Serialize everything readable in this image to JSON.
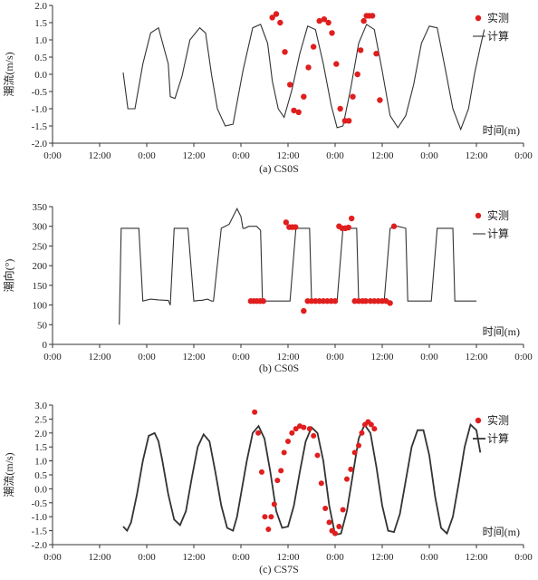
{
  "chart_data": [
    {
      "type": "line",
      "caption": "(a)  CS0S",
      "ylabel": "潮流(m/s)",
      "xlabel": "时间(m)",
      "ylim": [
        -2.0,
        2.0
      ],
      "yticks": [
        "2.0",
        "1.5",
        "1.0",
        "0.5",
        "0.0",
        "-0.5",
        "-1.0",
        "-1.5",
        "-2.0"
      ],
      "ytick_values": [
        2.0,
        1.5,
        1.0,
        0.5,
        0.0,
        -0.5,
        -1.0,
        -1.5,
        -2.0
      ],
      "xticks": [
        "0:00",
        "12:00",
        "0:00",
        "12:00",
        "0:00",
        "12:00",
        "0:00",
        "12:00",
        "0:00",
        "12:00",
        "0:00"
      ],
      "xlim_hours": [
        0,
        120
      ],
      "legend": {
        "measured": "实测",
        "computed": "计算",
        "position": "top-right"
      },
      "series": [
        {
          "name": "计算",
          "kind": "line",
          "x": [
            18.0,
            19.2,
            21.0,
            23.0,
            25.0,
            27.0,
            29.5,
            30.0,
            31.2,
            33.0,
            35.0,
            37.5,
            39.0,
            40.5,
            42.0,
            44.0,
            46.0,
            48.5,
            51.0,
            53.0,
            54.8,
            56.0,
            57.5,
            59.0,
            61.0,
            63.0,
            65.0,
            67.0,
            69.0,
            71.0,
            72.5,
            74.0,
            76.0,
            78.0,
            80.0,
            82.0,
            84.0,
            86.0,
            88.0,
            90.0,
            92.0,
            94.0,
            96.0,
            98.0,
            100.0,
            102.0,
            104.0,
            106.0,
            107.5,
            109.0,
            110.0
          ],
          "y": [
            0.05,
            -1.0,
            -1.0,
            0.3,
            1.2,
            1.35,
            0.3,
            -0.65,
            -0.7,
            -0.05,
            1.0,
            1.35,
            1.2,
            0.0,
            -1.0,
            -1.5,
            -1.45,
            0.1,
            1.35,
            1.45,
            0.9,
            -0.2,
            -1.0,
            -1.25,
            -0.45,
            0.6,
            1.4,
            1.3,
            0.3,
            -0.9,
            -1.55,
            -1.5,
            -0.4,
            0.9,
            1.45,
            1.3,
            0.1,
            -1.2,
            -1.55,
            -1.2,
            -0.3,
            0.9,
            1.4,
            1.35,
            0.2,
            -1.0,
            -1.6,
            -1.0,
            0.0,
            0.8,
            1.3
          ]
        },
        {
          "name": "实测",
          "kind": "scatter",
          "x": [
            56.0,
            57.0,
            58.0,
            59.2,
            60.5,
            61.5,
            62.7,
            64.0,
            65.2,
            66.5,
            68.0,
            69.2,
            70.3,
            71.2,
            72.3,
            73.3,
            74.5,
            75.5,
            76.5,
            77.7,
            78.5,
            79.3,
            80.0,
            80.7,
            81.5,
            82.5,
            83.4
          ],
          "y": [
            1.65,
            1.75,
            1.5,
            0.65,
            -0.3,
            -1.05,
            -1.1,
            -0.65,
            0.2,
            0.8,
            1.55,
            1.6,
            1.5,
            1.2,
            0.3,
            -1.0,
            -1.35,
            -1.35,
            -0.65,
            0.0,
            0.7,
            1.55,
            1.7,
            1.7,
            1.7,
            0.6,
            -0.75
          ]
        }
      ]
    },
    {
      "type": "line",
      "caption": "(b)  CS0S",
      "ylabel": "潮向(°)",
      "xlabel": "时间(m)",
      "ylim": [
        0,
        350
      ],
      "yticks": [
        "350",
        "300",
        "250",
        "200",
        "150",
        "100",
        "50",
        "0"
      ],
      "ytick_values": [
        350,
        300,
        250,
        200,
        150,
        100,
        50,
        0
      ],
      "xticks": [
        "0:00",
        "12:00",
        "0:00",
        "12:00",
        "0:00",
        "12:00",
        "0:00",
        "12:00",
        "0:00",
        "12:00",
        "0:00"
      ],
      "xlim_hours": [
        0,
        120
      ],
      "legend": {
        "measured": "实测",
        "computed": "计算",
        "position": "top-right"
      },
      "series": [
        {
          "name": "计算",
          "kind": "line",
          "x": [
            17.0,
            17.5,
            18.5,
            20.0,
            21.5,
            22.0,
            23.0,
            25.0,
            27.0,
            29.0,
            29.5,
            30.0,
            31.0,
            32.5,
            34.0,
            34.5,
            36.0,
            37.5,
            38.0,
            39.5,
            40.5,
            41.0,
            43.0,
            45.0,
            47.0,
            48.0,
            48.5,
            49.0,
            50.0,
            52.0,
            53.0,
            53.5,
            55.0,
            57.0,
            59.0,
            60.0,
            60.5,
            62.0,
            64.0,
            65.5,
            66.0,
            67.0,
            69.0,
            71.0,
            72.0,
            72.5,
            74.0,
            76.0,
            77.5,
            78.0,
            80.0,
            82.0,
            84.0,
            84.5,
            86.0,
            88.0,
            90.0,
            90.5,
            92.0,
            94.0,
            96.0,
            96.5,
            98.0,
            100.0,
            102.0,
            102.5,
            104.0,
            106.0,
            108.0
          ],
          "y": [
            50,
            295,
            295,
            295,
            295,
            295,
            110,
            115,
            113,
            112,
            112,
            100,
            295,
            295,
            295,
            295,
            110,
            112,
            112,
            115,
            110,
            110,
            295,
            305,
            345,
            325,
            295,
            295,
            300,
            300,
            290,
            110,
            110,
            110,
            110,
            110,
            110,
            295,
            295,
            295,
            110,
            110,
            110,
            110,
            110,
            110,
            295,
            295,
            295,
            110,
            110,
            110,
            110,
            110,
            295,
            300,
            295,
            110,
            110,
            110,
            110,
            110,
            295,
            295,
            295,
            110,
            110,
            110,
            110
          ]
        },
        {
          "name": "实测",
          "kind": "scatter",
          "x": [
            50.5,
            51.3,
            52.1,
            52.9,
            53.7,
            59.5,
            60.3,
            61.1,
            61.9,
            64.0,
            65.0,
            66.0,
            67.0,
            68.0,
            69.0,
            70.0,
            71.0,
            72.0,
            73.0,
            73.8,
            74.6,
            75.4,
            76.2,
            77.0,
            78.0,
            79.0,
            79.8,
            81.0,
            82.0,
            83.0,
            84.0,
            85.0,
            86.0,
            87.0
          ],
          "y": [
            110,
            110,
            110,
            110,
            110,
            310,
            298,
            298,
            298,
            85,
            110,
            110,
            110,
            110,
            110,
            110,
            110,
            110,
            300,
            295,
            295,
            297,
            320,
            110,
            110,
            110,
            110,
            110,
            110,
            110,
            110,
            110,
            105,
            300
          ],
          "x_fix_note": ""
        }
      ]
    },
    {
      "type": "line",
      "caption": "(c)  CS7S",
      "ylabel": "潮流(m/s)",
      "xlabel": "时间(m)",
      "ylim": [
        -2.0,
        3.0
      ],
      "yticks": [
        "3.0",
        "2.5",
        "2.0",
        "1.5",
        "1.0",
        "0.5",
        "0.0",
        "-0.5",
        "-1.0",
        "-1.5",
        "-2.0"
      ],
      "ytick_values": [
        3.0,
        2.5,
        2.0,
        1.5,
        1.0,
        0.5,
        0.0,
        -0.5,
        -1.0,
        -1.5,
        -2.0
      ],
      "xticks": [
        "0:00",
        "12:00",
        "0:00",
        "12:00",
        "0:00",
        "12:00",
        "0:00",
        "12:00",
        "0:00",
        "12:00",
        "0:00"
      ],
      "xlim_hours": [
        0,
        120
      ],
      "legend": {
        "measured": "实测",
        "computed": "计算",
        "position": "top-right"
      },
      "series": [
        {
          "name": "计算",
          "kind": "line",
          "x": [
            18.0,
            19.0,
            20.0,
            21.5,
            23.0,
            24.5,
            26.0,
            27.0,
            28.0,
            29.5,
            31.0,
            32.5,
            34.0,
            35.5,
            37.0,
            38.5,
            40.0,
            41.5,
            43.0,
            44.5,
            46.0,
            47.0,
            48.0,
            49.5,
            51.0,
            52.5,
            54.0,
            55.5,
            57.0,
            58.5,
            60.0,
            61.5,
            63.0,
            64.5,
            66.0,
            67.5,
            69.0,
            70.5,
            72.0,
            73.5,
            75.0,
            76.5,
            78.0,
            79.5,
            81.0,
            82.5,
            84.0,
            85.5,
            87.0,
            88.5,
            90.0,
            91.5,
            93.0,
            94.5,
            96.0,
            97.5,
            99.0,
            100.5,
            102.0,
            103.5,
            105.0,
            106.5,
            108.0,
            109.0
          ],
          "y": [
            -1.35,
            -1.5,
            -1.2,
            -0.2,
            1.0,
            1.9,
            2.0,
            1.7,
            1.0,
            -0.2,
            -1.1,
            -1.3,
            -0.8,
            0.4,
            1.5,
            1.95,
            1.7,
            0.6,
            -0.6,
            -1.4,
            -1.5,
            -1.0,
            -0.2,
            1.0,
            2.0,
            2.25,
            1.8,
            0.6,
            -0.8,
            -1.4,
            -1.35,
            -0.6,
            0.6,
            1.7,
            2.2,
            2.0,
            1.0,
            -0.6,
            -1.65,
            -1.6,
            -0.8,
            0.5,
            1.8,
            2.3,
            2.0,
            0.8,
            -0.6,
            -1.5,
            -1.55,
            -0.9,
            0.3,
            1.5,
            2.1,
            2.1,
            1.2,
            -0.3,
            -1.4,
            -1.6,
            -1.0,
            0.2,
            1.5,
            2.3,
            2.1,
            1.3
          ]
        },
        {
          "name": "实测",
          "kind": "scatter",
          "x": [
            51.5,
            52.4,
            53.3,
            54.1,
            55.0,
            55.7,
            56.5,
            57.3,
            58.2,
            59.0,
            60.0,
            61.0,
            62.0,
            63.0,
            64.0,
            65.5,
            66.5,
            67.5,
            68.5,
            69.5,
            70.5,
            71.2,
            72.0,
            73.0,
            74.0,
            75.0,
            76.0,
            77.0,
            78.0,
            78.8,
            79.6,
            80.4,
            81.2,
            82.0
          ],
          "y": [
            2.75,
            2.0,
            0.6,
            -1.0,
            -1.45,
            -1.0,
            -0.55,
            0.3,
            0.65,
            1.3,
            1.7,
            2.0,
            2.15,
            2.25,
            2.2,
            2.15,
            1.9,
            1.2,
            0.2,
            -0.7,
            -1.2,
            -1.5,
            -1.6,
            -1.35,
            -0.75,
            0.35,
            0.7,
            1.3,
            1.55,
            2.0,
            2.3,
            2.4,
            2.3,
            2.15
          ]
        }
      ]
    }
  ]
}
